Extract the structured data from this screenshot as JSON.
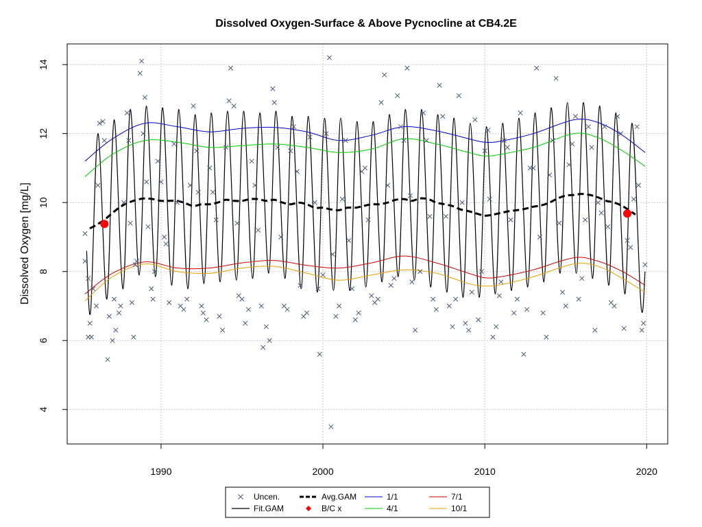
{
  "chart_data": {
    "type": "line",
    "title": "Dissolved Oxygen-Surface & Above Pycnocline at CB4.2E",
    "xlabel": "",
    "ylabel": "Dissolved Oxygen [mg/L]",
    "xlim": [
      1984.2,
      2021.3
    ],
    "ylim": [
      3.0,
      14.6
    ],
    "xticks": [
      1990,
      2000,
      2010,
      2020
    ],
    "yticks": [
      4,
      6,
      8,
      10,
      12,
      14
    ],
    "grid": true,
    "legend_position": "bottom",
    "legend": [
      "Uncen.",
      "Fit.GAM",
      "Avg.GAM",
      "B/C x",
      "1/1",
      "4/1",
      "7/1",
      "10/1"
    ],
    "colors": {
      "uncen": "#4a5a78",
      "fit": "#000000",
      "avg": "#000000",
      "bc": "#ff0000",
      "d0101": "#0000cc",
      "d0401": "#00cc00",
      "d0701": "#cc0000",
      "d1001": "#e8a000"
    },
    "series": [
      {
        "name": "Avg.GAM",
        "x": [
          1985.6,
          1986,
          1986.5,
          1987,
          1987.5,
          1988,
          1988.5,
          1989,
          1989.5,
          1990,
          1990.5,
          1991,
          1991.5,
          1992,
          1992.5,
          1993,
          1993.5,
          1994,
          1994.5,
          1995,
          1995.5,
          1996,
          1996.5,
          1997,
          1997.5,
          1998,
          1998.5,
          1999,
          1999.5,
          2000,
          2000.5,
          2001,
          2001.5,
          2002,
          2002.5,
          2003,
          2003.5,
          2004,
          2004.5,
          2005,
          2005.5,
          2006,
          2006.5,
          2007,
          2007.5,
          2008,
          2008.5,
          2009,
          2009.5,
          2010,
          2010.5,
          2011,
          2011.5,
          2012,
          2012.5,
          2013,
          2013.5,
          2014,
          2014.5,
          2015,
          2015.5,
          2016,
          2016.5,
          2017,
          2017.5,
          2018,
          2018.5,
          2019,
          2019.3
        ],
        "y": [
          9.25,
          9.35,
          9.5,
          9.7,
          9.88,
          10.0,
          10.08,
          10.12,
          10.1,
          10.05,
          10.05,
          10.05,
          9.98,
          9.9,
          9.95,
          9.95,
          10.0,
          10.08,
          10.05,
          10.05,
          10.1,
          10.1,
          10.05,
          10.08,
          10.0,
          9.95,
          10.0,
          9.95,
          9.85,
          9.85,
          9.8,
          9.78,
          9.85,
          9.85,
          9.9,
          9.95,
          9.95,
          10.0,
          10.08,
          10.1,
          10.05,
          10.12,
          10.1,
          10.0,
          9.95,
          9.9,
          9.8,
          9.75,
          9.68,
          9.62,
          9.65,
          9.7,
          9.75,
          9.78,
          9.82,
          9.88,
          9.92,
          10.0,
          10.12,
          10.2,
          10.22,
          10.25,
          10.22,
          10.15,
          10.05,
          10.0,
          9.9,
          9.75,
          9.65
        ]
      },
      {
        "name": "1/1",
        "x": [
          1985.3,
          1987,
          1989,
          1991,
          1993,
          1995,
          1997,
          1999,
          2001,
          2003,
          2005,
          2007,
          2009,
          2010,
          2011,
          2013,
          2015.5,
          2017,
          2018.5,
          2019.9
        ],
        "y": [
          11.2,
          11.85,
          12.3,
          12.2,
          12.05,
          12.15,
          12.18,
          12.05,
          11.8,
          11.95,
          12.2,
          12.08,
          11.85,
          11.75,
          11.78,
          12.0,
          12.4,
          12.32,
          11.95,
          11.45
        ]
      },
      {
        "name": "4/1",
        "x": [
          1985.3,
          1987,
          1989,
          1991,
          1993,
          1995,
          1997,
          1999,
          2001,
          2003,
          2005,
          2007,
          2009,
          2010,
          2011,
          2013,
          2015.5,
          2017,
          2018.5,
          2019.9
        ],
        "y": [
          10.75,
          11.4,
          11.8,
          11.75,
          11.6,
          11.65,
          11.7,
          11.6,
          11.45,
          11.55,
          11.85,
          11.7,
          11.45,
          11.35,
          11.4,
          11.6,
          12.0,
          11.88,
          11.5,
          11.05
        ]
      },
      {
        "name": "7/1",
        "x": [
          1985.3,
          1987,
          1989,
          1991,
          1993,
          1995,
          1997,
          1999,
          2001,
          2003,
          2005,
          2007,
          2009,
          2010,
          2011,
          2013,
          2015.5,
          2017,
          2018.5,
          2019.9
        ],
        "y": [
          7.35,
          7.95,
          8.28,
          8.1,
          8.1,
          8.25,
          8.32,
          8.18,
          8.1,
          8.25,
          8.45,
          8.25,
          7.95,
          7.82,
          7.85,
          8.05,
          8.4,
          8.3,
          8.0,
          7.6
        ]
      },
      {
        "name": "10/1",
        "x": [
          1985.3,
          1987,
          1989,
          1991,
          1993,
          1995,
          1997,
          1999,
          2001,
          2003,
          2005,
          2007,
          2009,
          2010,
          2011,
          2013,
          2015.5,
          2017,
          2018.5,
          2019.9
        ],
        "y": [
          7.15,
          7.85,
          8.22,
          8.0,
          7.95,
          8.1,
          8.15,
          7.95,
          7.75,
          7.9,
          8.05,
          7.95,
          7.65,
          7.58,
          7.62,
          7.85,
          8.22,
          8.15,
          7.8,
          7.4
        ]
      },
      {
        "name": "Fit.GAM",
        "x": [
          1985.4,
          1985.65,
          1986.1,
          1986.65,
          1987.1,
          1987.65,
          1988.1,
          1988.65,
          1989.1,
          1989.65,
          1990.1,
          1990.65,
          1991.1,
          1991.65,
          1992.1,
          1992.65,
          1993.1,
          1993.65,
          1994.1,
          1994.65,
          1995.1,
          1995.65,
          1996.1,
          1996.65,
          1997.1,
          1997.65,
          1998.1,
          1998.65,
          1999.1,
          1999.65,
          2000.1,
          2000.65,
          2001.1,
          2001.65,
          2002.1,
          2002.65,
          2003.1,
          2003.65,
          2004.1,
          2004.65,
          2005.1,
          2005.65,
          2006.1,
          2006.65,
          2007.1,
          2007.65,
          2008.1,
          2008.65,
          2009.1,
          2009.65,
          2010.1,
          2010.65,
          2011.1,
          2011.65,
          2012.1,
          2012.65,
          2013.1,
          2013.65,
          2014.1,
          2014.65,
          2015.1,
          2015.65,
          2016.1,
          2016.65,
          2017.1,
          2017.65,
          2018.1,
          2018.65,
          2019.1,
          2019.65,
          2019.9
        ],
        "y": [
          8.6,
          6.85,
          12.0,
          7.2,
          12.4,
          7.5,
          12.7,
          7.9,
          12.8,
          7.85,
          12.75,
          7.6,
          12.7,
          7.5,
          12.55,
          7.65,
          12.6,
          7.7,
          12.65,
          7.75,
          12.65,
          7.8,
          12.6,
          7.95,
          12.65,
          7.8,
          12.5,
          7.5,
          12.5,
          7.4,
          12.45,
          7.45,
          12.45,
          7.45,
          12.35,
          7.55,
          12.35,
          7.7,
          12.55,
          7.85,
          12.7,
          7.75,
          12.7,
          7.55,
          12.55,
          7.4,
          12.45,
          7.25,
          12.3,
          7.25,
          12.2,
          7.35,
          12.3,
          7.45,
          12.45,
          7.55,
          12.6,
          7.7,
          12.75,
          7.95,
          12.9,
          7.95,
          12.9,
          7.8,
          12.8,
          7.6,
          12.6,
          7.35,
          12.3,
          7.0,
          8.0
        ]
      }
    ],
    "bc_points": [
      {
        "x": 1986.5,
        "y": 9.38
      },
      {
        "x": 2018.8,
        "y": 9.68
      }
    ],
    "uncen_points": [
      [
        1985.3,
        9.1
      ],
      [
        1985.3,
        8.3
      ],
      [
        1985.5,
        7.8
      ],
      [
        1985.5,
        6.1
      ],
      [
        1985.6,
        6.5
      ],
      [
        1985.7,
        6.1
      ],
      [
        1985.8,
        7.5
      ],
      [
        1986.0,
        7.0
      ],
      [
        1986.1,
        10.5
      ],
      [
        1986.2,
        12.3
      ],
      [
        1986.4,
        12.35
      ],
      [
        1986.5,
        11.8
      ],
      [
        1986.7,
        5.45
      ],
      [
        1986.8,
        6.7
      ],
      [
        1987.0,
        6.0
      ],
      [
        1987.1,
        7.2
      ],
      [
        1987.2,
        6.3
      ],
      [
        1987.4,
        6.8
      ],
      [
        1987.5,
        7.0
      ],
      [
        1987.7,
        10.0
      ],
      [
        1987.9,
        12.6
      ],
      [
        1988.0,
        11.8
      ],
      [
        1988.1,
        9.4
      ],
      [
        1988.2,
        7.1
      ],
      [
        1988.3,
        6.1
      ],
      [
        1988.4,
        8.2
      ],
      [
        1988.5,
        8.3
      ],
      [
        1988.7,
        13.75
      ],
      [
        1988.8,
        14.1
      ],
      [
        1988.9,
        12.0
      ],
      [
        1989.0,
        13.05
      ],
      [
        1989.1,
        10.6
      ],
      [
        1989.2,
        9.3
      ],
      [
        1989.4,
        7.5
      ],
      [
        1989.5,
        7.2
      ],
      [
        1989.6,
        8.0
      ],
      [
        1989.8,
        11.2
      ],
      [
        1990.0,
        10.6
      ],
      [
        1990.2,
        9.0
      ],
      [
        1990.3,
        8.8
      ],
      [
        1990.5,
        7.1
      ],
      [
        1990.8,
        11.7
      ],
      [
        1991.0,
        10.0
      ],
      [
        1991.2,
        7.0
      ],
      [
        1991.4,
        6.9
      ],
      [
        1991.6,
        7.2
      ],
      [
        1991.8,
        10.5
      ],
      [
        1992.0,
        12.8
      ],
      [
        1992.2,
        11.5
      ],
      [
        1992.3,
        10.3
      ],
      [
        1992.5,
        7.0
      ],
      [
        1992.6,
        6.8
      ],
      [
        1992.8,
        6.6
      ],
      [
        1993.0,
        11.0
      ],
      [
        1993.2,
        10.3
      ],
      [
        1993.4,
        9.5
      ],
      [
        1993.6,
        6.7
      ],
      [
        1993.8,
        6.3
      ],
      [
        1994.0,
        11.6
      ],
      [
        1994.2,
        12.95
      ],
      [
        1994.3,
        13.9
      ],
      [
        1994.5,
        12.8
      ],
      [
        1994.7,
        9.4
      ],
      [
        1994.8,
        7.3
      ],
      [
        1995.0,
        7.2
      ],
      [
        1995.2,
        6.5
      ],
      [
        1995.4,
        6.9
      ],
      [
        1995.6,
        11.2
      ],
      [
        1995.8,
        10.5
      ],
      [
        1996.0,
        9.2
      ],
      [
        1996.2,
        7.0
      ],
      [
        1996.3,
        5.8
      ],
      [
        1996.5,
        6.4
      ],
      [
        1996.7,
        6.0
      ],
      [
        1996.9,
        13.3
      ],
      [
        1997.0,
        12.9
      ],
      [
        1997.2,
        11.6
      ],
      [
        1997.4,
        9.0
      ],
      [
        1997.6,
        7.0
      ],
      [
        1997.8,
        6.9
      ],
      [
        1998.0,
        11.5
      ],
      [
        1998.2,
        12.2
      ],
      [
        1998.4,
        10.9
      ],
      [
        1998.6,
        7.6
      ],
      [
        1998.8,
        6.7
      ],
      [
        1999.0,
        6.8
      ],
      [
        1999.2,
        11.9
      ],
      [
        1999.5,
        10.0
      ],
      [
        1999.7,
        7.5
      ],
      [
        1999.8,
        5.6
      ],
      [
        2000.0,
        7.9
      ],
      [
        2000.2,
        12.0
      ],
      [
        2000.4,
        14.2
      ],
      [
        2000.5,
        3.5
      ],
      [
        2000.6,
        8.5
      ],
      [
        2000.8,
        6.7
      ],
      [
        2001.0,
        7.0
      ],
      [
        2001.2,
        10.1
      ],
      [
        2001.4,
        11.8
      ],
      [
        2001.6,
        8.9
      ],
      [
        2001.8,
        7.5
      ],
      [
        2002.0,
        6.6
      ],
      [
        2002.2,
        6.8
      ],
      [
        2002.4,
        10.9
      ],
      [
        2002.6,
        11.0
      ],
      [
        2002.8,
        9.5
      ],
      [
        2003.0,
        7.3
      ],
      [
        2003.2,
        7.1
      ],
      [
        2003.4,
        7.2
      ],
      [
        2003.6,
        12.9
      ],
      [
        2003.8,
        13.7
      ],
      [
        2004.0,
        10.5
      ],
      [
        2004.2,
        7.6
      ],
      [
        2004.4,
        7.8
      ],
      [
        2004.6,
        13.1
      ],
      [
        2004.8,
        12.2
      ],
      [
        2005.0,
        11.8
      ],
      [
        2005.2,
        13.9
      ],
      [
        2005.4,
        10.2
      ],
      [
        2005.5,
        7.7
      ],
      [
        2005.7,
        6.3
      ],
      [
        2006.0,
        8.0
      ],
      [
        2006.2,
        12.6
      ],
      [
        2006.4,
        11.8
      ],
      [
        2006.6,
        9.6
      ],
      [
        2006.8,
        7.2
      ],
      [
        2007.0,
        6.9
      ],
      [
        2007.2,
        13.4
      ],
      [
        2007.4,
        12.5
      ],
      [
        2007.6,
        9.6
      ],
      [
        2007.8,
        7.0
      ],
      [
        2008.0,
        6.4
      ],
      [
        2008.2,
        7.2
      ],
      [
        2008.4,
        13.1
      ],
      [
        2008.6,
        10.0
      ],
      [
        2008.8,
        6.5
      ],
      [
        2009.0,
        6.3
      ],
      [
        2009.2,
        7.4
      ],
      [
        2009.4,
        12.4
      ],
      [
        2009.6,
        6.6
      ],
      [
        2009.8,
        8.0
      ],
      [
        2010.0,
        11.5
      ],
      [
        2010.2,
        12.1
      ],
      [
        2010.3,
        10.1
      ],
      [
        2010.5,
        6.1
      ],
      [
        2010.7,
        6.4
      ],
      [
        2010.9,
        7.3
      ],
      [
        2011.0,
        7.7
      ],
      [
        2011.2,
        11.8
      ],
      [
        2011.4,
        11.6
      ],
      [
        2011.6,
        9.5
      ],
      [
        2011.8,
        6.8
      ],
      [
        2012.0,
        7.2
      ],
      [
        2012.2,
        12.6
      ],
      [
        2012.4,
        5.6
      ],
      [
        2012.6,
        6.9
      ],
      [
        2012.8,
        11.0
      ],
      [
        2013.0,
        11.0
      ],
      [
        2013.2,
        13.9
      ],
      [
        2013.4,
        9.0
      ],
      [
        2013.6,
        6.8
      ],
      [
        2013.8,
        6.1
      ],
      [
        2014.0,
        10.8
      ],
      [
        2014.2,
        11.8
      ],
      [
        2014.4,
        13.6
      ],
      [
        2014.6,
        9.4
      ],
      [
        2014.8,
        7.4
      ],
      [
        2015.0,
        7.0
      ],
      [
        2015.2,
        11.1
      ],
      [
        2015.4,
        11.7
      ],
      [
        2015.6,
        12.5
      ],
      [
        2015.8,
        7.2
      ],
      [
        2016.0,
        7.8
      ],
      [
        2016.2,
        9.5
      ],
      [
        2016.4,
        12.2
      ],
      [
        2016.6,
        11.6
      ],
      [
        2016.8,
        6.3
      ],
      [
        2017.0,
        10.0
      ],
      [
        2017.2,
        9.7
      ],
      [
        2017.4,
        12.2
      ],
      [
        2017.6,
        9.3
      ],
      [
        2017.8,
        7.1
      ],
      [
        2018.0,
        7.0
      ],
      [
        2018.2,
        12.5
      ],
      [
        2018.4,
        12.0
      ],
      [
        2018.6,
        6.35
      ],
      [
        2018.8,
        8.9
      ],
      [
        2019.0,
        8.7
      ],
      [
        2019.2,
        10.1
      ],
      [
        2019.4,
        12.2
      ],
      [
        2019.5,
        10.5
      ],
      [
        2019.7,
        6.3
      ],
      [
        2019.8,
        6.5
      ],
      [
        2019.9,
        8.2
      ]
    ]
  }
}
